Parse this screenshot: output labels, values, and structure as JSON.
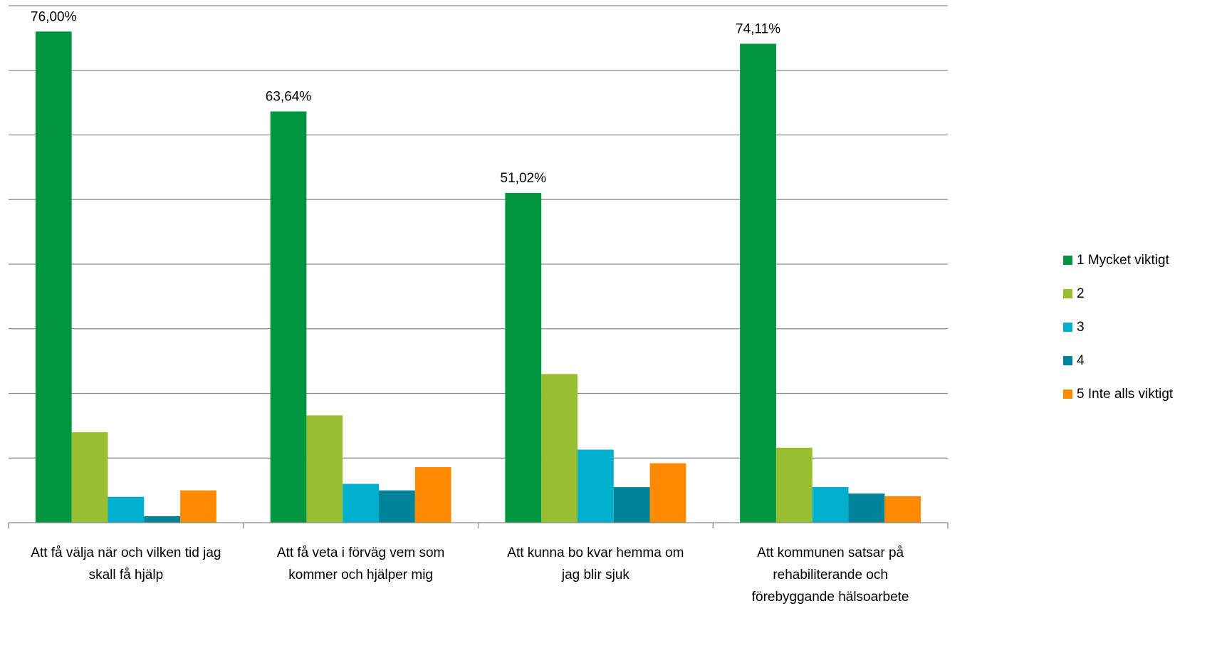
{
  "chart_data": {
    "type": "bar",
    "title": "",
    "xlabel": "",
    "ylabel": "",
    "ylim": [
      0,
      80
    ],
    "grid": true,
    "legend_position": "right",
    "categories": [
      [
        "Att få välja när och vilken tid jag",
        "skall få hjälp"
      ],
      [
        "Att få veta i förväg vem som",
        "kommer och hjälper mig"
      ],
      [
        "Att kunna bo kvar hemma om",
        "jag blir sjuk"
      ],
      [
        "Att kommunen satsar på",
        "rehabiliterande och",
        "förebyggande hälsoarbete"
      ]
    ],
    "series": [
      {
        "name": "1 Mycket viktigt",
        "color": "#00963F",
        "values": [
          76.0,
          63.64,
          51.02,
          74.11
        ],
        "labels": [
          "76,00%",
          "63,64%",
          "51,02%",
          "74,11%"
        ]
      },
      {
        "name": "2",
        "color": "#97BF30",
        "values": [
          14.0,
          16.6,
          23.0,
          11.6
        ]
      },
      {
        "name": "3",
        "color": "#00AECE",
        "values": [
          4.0,
          6.0,
          11.3,
          5.5
        ]
      },
      {
        "name": "4",
        "color": "#00839A",
        "values": [
          1.0,
          5.0,
          5.5,
          4.5
        ]
      },
      {
        "name": "5 Inte alls viktigt",
        "color": "#FF8A00",
        "values": [
          5.0,
          8.6,
          9.2,
          4.1
        ]
      }
    ]
  }
}
